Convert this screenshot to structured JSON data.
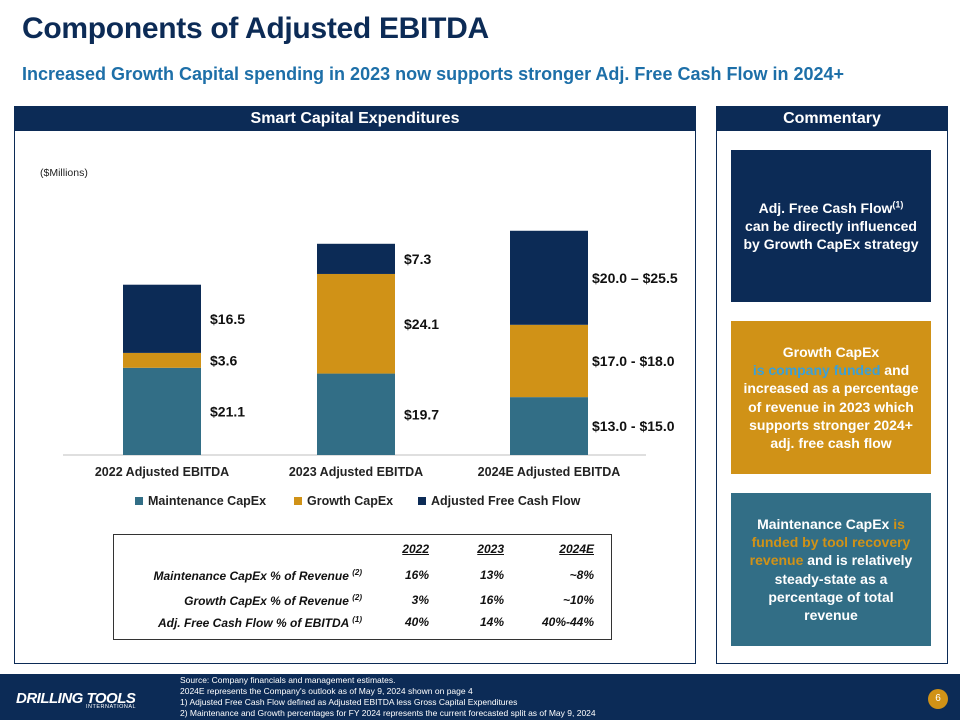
{
  "title": "Components of Adjusted EBITDA",
  "subtitle": "Increased Growth Capital spending in 2023 now supports stronger Adj. Free Cash Flow in 2024+",
  "left_panel": {
    "header": "Smart Capital Expenditures",
    "units": "($Millions)"
  },
  "right_panel": {
    "header": "Commentary"
  },
  "commentary": {
    "fcf": {
      "text": "Adj. Free Cash Flow",
      "sup": "(1)",
      "rest": "can be directly influenced by Growth CapEx strategy"
    },
    "growth": {
      "a": "Growth CapEx",
      "b": "is company funded",
      "c": "and increased as a percentage of revenue in 2023 which supports stronger 2024+ adj. free cash flow"
    },
    "maint": {
      "a": "Maintenance CapEx",
      "b": "is funded by tool recovery revenue",
      "c": "and is relatively steady-state as a percentage of total revenue"
    }
  },
  "chart_data": {
    "type": "bar",
    "stacked": true,
    "categories": [
      "2022 Adjusted EBITDA",
      "2023 Adjusted EBITDA",
      "2024E Adjusted EBITDA"
    ],
    "series": [
      {
        "name": "Maintenance CapEx",
        "color": "#326e86",
        "values": [
          21.1,
          19.7,
          14.0
        ],
        "labels": [
          "$21.1",
          "$19.7",
          "$13.0 - $15.0"
        ]
      },
      {
        "name": "Growth CapEx",
        "color": "#d09217",
        "values": [
          3.6,
          24.1,
          17.5
        ],
        "labels": [
          "$3.6",
          "$24.1",
          "$17.0 - $18.0"
        ]
      },
      {
        "name": "Adjusted Free Cash Flow",
        "color": "#0c2b56",
        "values": [
          16.5,
          7.3,
          22.75
        ],
        "labels": [
          "$16.5",
          "$7.3",
          "$20.0 – $25.5"
        ]
      }
    ],
    "ylim": [
      0,
      60
    ],
    "legend_position": "bottom"
  },
  "table": {
    "columns": [
      "2022",
      "2023",
      "2024E"
    ],
    "rows": [
      {
        "label": "Maintenance CapEx % of Revenue",
        "sup": "(2)",
        "values": [
          "16%",
          "13%",
          "~8%"
        ]
      },
      {
        "label": "Growth CapEx % of Revenue",
        "sup": "(2)",
        "values": [
          "3%",
          "16%",
          "~10%"
        ]
      },
      {
        "label": "Adj. Free Cash Flow % of EBITDA",
        "sup": "(1)",
        "values": [
          "40%",
          "14%",
          "40%-44%"
        ]
      }
    ]
  },
  "footer": {
    "logo": "DRILLING TOOLS",
    "logo_sub": "INTERNATIONAL",
    "notes": [
      "Source:  Company financials and management estimates.",
      "2024E represents the Company's outlook as of May 9, 2024 shown on page 4",
      "1)    Adjusted Free Cash Flow defined as Adjusted EBITDA less Gross Capital Expenditures",
      "2)    Maintenance and Growth percentages for FY 2024 represents the current forecasted split as of May 9, 2024"
    ],
    "page": "6"
  }
}
